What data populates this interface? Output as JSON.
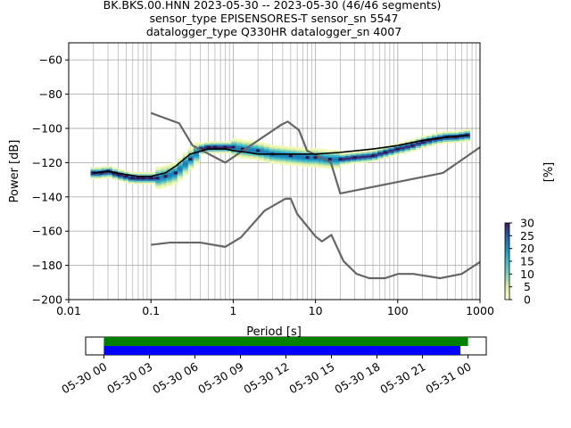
{
  "chart_data": [
    {
      "type": "heatmap",
      "title_lines": [
        "BK.BKS.00.HNN   2023-05-30 -- 2023-05-30  (46/46 segments)",
        "sensor_type EPISENSORES-T sensor_sn 5547",
        "datalogger_type Q330HR datalogger_sn 4007"
      ],
      "xlabel": "Period [s]",
      "ylabel": "Power [dB]",
      "xscale": "log",
      "xlim": [
        0.01,
        1000
      ],
      "ylim": [
        -200,
        -50
      ],
      "x_ticks": [
        {
          "v": 0.01,
          "label": "0.01"
        },
        {
          "v": 0.1,
          "label": "0.1"
        },
        {
          "v": 1,
          "label": "1"
        },
        {
          "v": 10,
          "label": "10"
        },
        {
          "v": 100,
          "label": "100"
        },
        {
          "v": 1000,
          "label": "1000"
        }
      ],
      "y_ticks": [
        {
          "v": -60,
          "label": "−60"
        },
        {
          "v": -80,
          "label": "−80"
        },
        {
          "v": -100,
          "label": "−100"
        },
        {
          "v": -120,
          "label": "−120"
        },
        {
          "v": -140,
          "label": "−140"
        },
        {
          "v": -160,
          "label": "−160"
        },
        {
          "v": -180,
          "label": "−180"
        },
        {
          "v": -200,
          "label": "−200"
        }
      ],
      "grid": true,
      "colorbar": {
        "label": "[%]",
        "range": [
          0,
          30
        ],
        "ticks": [
          {
            "v": 0,
            "label": "0"
          },
          {
            "v": 5,
            "label": "5"
          },
          {
            "v": 10,
            "label": "10"
          },
          {
            "v": 15,
            "label": "15"
          },
          {
            "v": 20,
            "label": "20"
          },
          {
            "v": 25,
            "label": "25"
          },
          {
            "v": 30,
            "label": "30"
          }
        ],
        "colors": [
          "#ffffcc",
          "#d9f0a3",
          "#7fcdbb",
          "#41b6c4",
          "#1d91c0",
          "#225ea8",
          "#3f1f6b"
        ]
      },
      "mean_curve": {
        "color": "#000000",
        "x": [
          0.02,
          0.03,
          0.05,
          0.07,
          0.1,
          0.15,
          0.2,
          0.3,
          0.5,
          0.8,
          1.0,
          1.5,
          2,
          3,
          5,
          10,
          20,
          50,
          100,
          200,
          400,
          700
        ],
        "y": [
          -126,
          -125,
          -127,
          -128,
          -128,
          -126,
          -122,
          -115,
          -112,
          -112,
          -113,
          -114,
          -115,
          -115,
          -115,
          -115,
          -114,
          -112,
          -110,
          -107,
          -105,
          -104
        ]
      },
      "mode_points": {
        "color": "#2c1a4f",
        "x": [
          0.02,
          0.025,
          0.03,
          0.035,
          0.04,
          0.05,
          0.06,
          0.07,
          0.08,
          0.1,
          0.12,
          0.15,
          0.2,
          0.3,
          0.4,
          0.5,
          0.6,
          0.8,
          1,
          1.3,
          2,
          3,
          5,
          8,
          10,
          15,
          20,
          30,
          50,
          70,
          100,
          150,
          200,
          300,
          400,
          500,
          700
        ],
        "y": [
          -126,
          -126,
          -125,
          -126,
          -127,
          -128,
          -129,
          -129,
          -129,
          -129,
          -129,
          -128,
          -126,
          -118,
          -112,
          -111,
          -111,
          -111,
          -111,
          -112,
          -113,
          -115,
          -116,
          -117,
          -117,
          -118,
          -118,
          -117,
          -116,
          -114,
          -112,
          -110,
          -108,
          -106,
          -105,
          -105,
          -104
        ]
      },
      "noise_models": [
        {
          "name": "",
          "color": "#666666",
          "x": [
            0.1,
            0.22,
            0.32,
            0.8,
            3.8,
            4.6,
            6.3,
            7.9,
            15.4,
            20,
            354.8,
            1000
          ],
          "y": [
            -91,
            -97,
            -110,
            -120,
            -98,
            -96,
            -101,
            -113,
            -120,
            -138,
            -126,
            -111
          ]
        },
        {
          "name": "",
          "color": "#666666",
          "x": [
            0.1,
            0.17,
            0.4,
            0.8,
            1.24,
            2.4,
            4.3,
            5.0,
            6.0,
            10.0,
            12.0,
            15.6,
            21.9,
            31.6,
            45.0,
            70.0,
            101.0,
            154.0,
            328.0,
            600.0,
            1000.0
          ],
          "y": [
            -168,
            -166.7,
            -166.7,
            -169.2,
            -163.7,
            -148.1,
            -141.1,
            -141.1,
            -150,
            -163.1,
            -166,
            -162.2,
            -177.5,
            -185,
            -187.5,
            -187.5,
            -185,
            -185,
            -187.5,
            -185,
            -178
          ]
        }
      ]
    },
    {
      "type": "timeline",
      "x_start": "2023-05-30 00:00",
      "x_end": "2023-05-31 00:00",
      "xlim_hours": [
        -1.2,
        25.2
      ],
      "x_ticks": [
        {
          "h": 0,
          "label": "05-30 00"
        },
        {
          "h": 3,
          "label": "05-30 03"
        },
        {
          "h": 6,
          "label": "05-30 06"
        },
        {
          "h": 9,
          "label": "05-30 09"
        },
        {
          "h": 12,
          "label": "05-30 12"
        },
        {
          "h": 15,
          "label": "05-30 15"
        },
        {
          "h": 18,
          "label": "05-30 18"
        },
        {
          "h": 21,
          "label": "05-30 21"
        },
        {
          "h": 24,
          "label": "05-31 00"
        }
      ],
      "bars": [
        {
          "name": "",
          "color": "#008000",
          "start_h": 0,
          "end_h": 24.0
        },
        {
          "name": "",
          "color": "#0000ff",
          "start_h": 0,
          "end_h": 23.5
        }
      ]
    }
  ]
}
